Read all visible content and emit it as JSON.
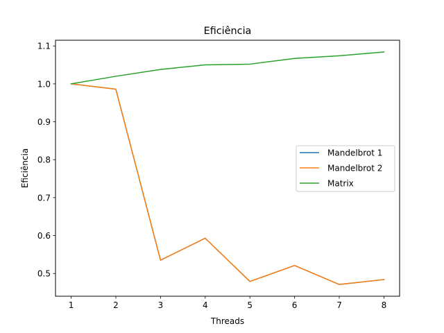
{
  "chart_data": {
    "type": "line",
    "title": "Eficiência",
    "xlabel": "Threads",
    "ylabel": "Eficiência",
    "x": [
      1,
      2,
      3,
      4,
      5,
      6,
      7,
      8
    ],
    "xlim": [
      0.65,
      8.35
    ],
    "ylim": [
      0.44,
      1.115
    ],
    "xticks": [
      1,
      2,
      3,
      4,
      5,
      6,
      7,
      8
    ],
    "yticks": [
      0.5,
      0.6,
      0.7,
      0.8,
      0.9,
      1.0,
      1.1
    ],
    "ytick_labels": [
      "0.5",
      "0.6",
      "0.7",
      "0.8",
      "0.9",
      "1.0",
      "1.1"
    ],
    "grid": false,
    "legend_position": "center-right",
    "series": [
      {
        "name": "Mandelbrot 1",
        "color": "#1f77b4",
        "values": [
          1.0,
          0.986,
          0.535,
          0.593,
          0.479,
          0.521,
          0.471,
          0.484
        ]
      },
      {
        "name": "Mandelbrot 2",
        "color": "#ff7f0e",
        "values": [
          1.0,
          0.986,
          0.535,
          0.593,
          0.479,
          0.521,
          0.471,
          0.484
        ]
      },
      {
        "name": "Matrix",
        "color": "#2ca02c",
        "values": [
          1.0,
          1.02,
          1.038,
          1.05,
          1.052,
          1.067,
          1.074,
          1.084
        ]
      }
    ]
  }
}
